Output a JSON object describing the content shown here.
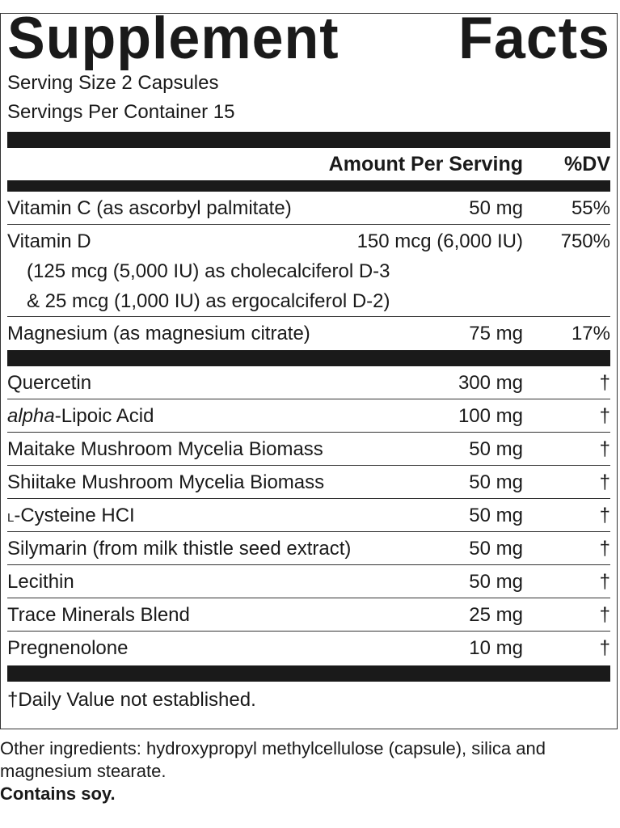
{
  "title": {
    "word1": "Supplement",
    "word2": "Facts"
  },
  "serving_size": "Serving Size 2 Capsules",
  "servings_per_container": "Servings Per Container 15",
  "header": {
    "amount": "Amount Per Serving",
    "dv": "%DV"
  },
  "vitamins": [
    {
      "name": "Vitamin C (as ascorbyl palmitate)",
      "amount": "50 mg",
      "dv": "55%"
    },
    {
      "name": "Vitamin D",
      "amount": "150 mcg (6,000 IU)",
      "dv": "750%",
      "details": [
        "(125 mcg (5,000 IU) as cholecalciferol D-3",
        "& 25 mcg (1,000 IU) as ergocalciferol D-2)"
      ]
    },
    {
      "name": "Magnesium (as magnesium citrate)",
      "amount": "75 mg",
      "dv": "17%"
    }
  ],
  "others": [
    {
      "name": "Quercetin",
      "amount": "300 mg",
      "dv": "†"
    },
    {
      "name_italic": "alpha",
      "name": "-Lipoic Acid",
      "amount": "100 mg",
      "dv": "†"
    },
    {
      "name": "Maitake Mushroom Mycelia Biomass",
      "amount": "50 mg",
      "dv": "†"
    },
    {
      "name": "Shiitake Mushroom Mycelia Biomass",
      "amount": "50 mg",
      "dv": "†"
    },
    {
      "name_smallcap": "L",
      "name": "-Cysteine HCI",
      "amount": "50 mg",
      "dv": "†"
    },
    {
      "name": "Silymarin (from milk thistle seed extract)",
      "amount": "50 mg",
      "dv": "†"
    },
    {
      "name": "Lecithin",
      "amount": "50 mg",
      "dv": "†"
    },
    {
      "name": "Trace Minerals Blend",
      "amount": "25 mg",
      "dv": "†"
    },
    {
      "name": "Pregnenolone",
      "amount": "10 mg",
      "dv": "†"
    }
  ],
  "footnote": "†Daily Value not established.",
  "other_ingredients": "Other ingredients: hydroxypropyl methylcellulose (capsule), silica and magnesium stearate.",
  "allergen": "Contains soy."
}
